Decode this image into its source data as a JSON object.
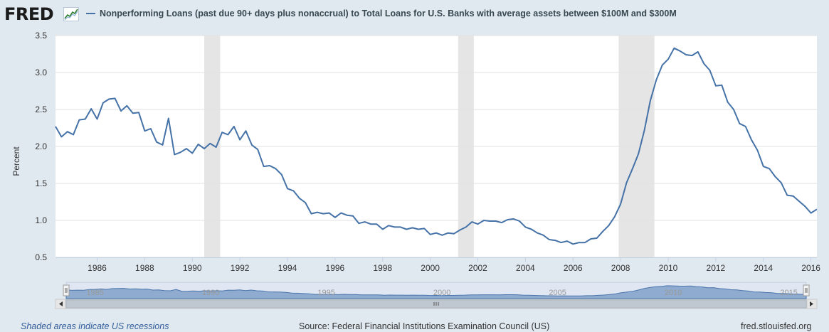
{
  "header": {
    "logo": "FRED",
    "logo_graph_icon": "line-graph-icon",
    "title": "Nonperforming Loans (past due 90+ days plus nonaccrual) to Total Loans for U.S. Banks with average assets between $100M and $300M"
  },
  "chart_data": {
    "type": "line",
    "title": "Nonperforming Loans (past due 90+ days plus nonaccrual) to Total Loans for U.S. Banks with average assets between $100M and $300M",
    "xlabel": "",
    "ylabel": "Percent",
    "ylim": [
      0.5,
      3.5
    ],
    "xlim": [
      1984.25,
      2016.25
    ],
    "yticks": [
      "0.5",
      "1.0",
      "1.5",
      "2.0",
      "2.5",
      "3.0",
      "3.5"
    ],
    "xticks": [
      "1986",
      "1988",
      "1990",
      "1992",
      "1994",
      "1996",
      "1998",
      "2000",
      "2002",
      "2004",
      "2006",
      "2008",
      "2010",
      "2012",
      "2014",
      "2016"
    ],
    "grid": true,
    "line_color": "#4572a7",
    "recessions": [
      [
        1990.5,
        1991.17
      ],
      [
        2001.17,
        2001.83
      ],
      [
        2007.92,
        2009.42
      ]
    ],
    "series": [
      {
        "name": "Nonperforming Loans (past due 90+ days plus nonaccrual) to Total Loans for U.S. Banks with average assets between $100M and $300M",
        "values": [
          [
            1984.25,
            2.27
          ],
          [
            1984.5,
            2.13
          ],
          [
            1984.75,
            2.2
          ],
          [
            1985.0,
            2.16
          ],
          [
            1985.25,
            2.36
          ],
          [
            1985.5,
            2.37
          ],
          [
            1985.75,
            2.51
          ],
          [
            1986.0,
            2.37
          ],
          [
            1986.25,
            2.59
          ],
          [
            1986.5,
            2.64
          ],
          [
            1986.75,
            2.65
          ],
          [
            1987.0,
            2.48
          ],
          [
            1987.25,
            2.55
          ],
          [
            1987.5,
            2.45
          ],
          [
            1987.75,
            2.46
          ],
          [
            1988.0,
            2.21
          ],
          [
            1988.25,
            2.24
          ],
          [
            1988.5,
            2.06
          ],
          [
            1988.75,
            2.02
          ],
          [
            1989.0,
            2.38
          ],
          [
            1989.25,
            1.89
          ],
          [
            1989.5,
            1.92
          ],
          [
            1989.75,
            1.97
          ],
          [
            1990.0,
            1.91
          ],
          [
            1990.25,
            2.03
          ],
          [
            1990.5,
            1.97
          ],
          [
            1990.75,
            2.04
          ],
          [
            1991.0,
            1.99
          ],
          [
            1991.25,
            2.19
          ],
          [
            1991.5,
            2.16
          ],
          [
            1991.75,
            2.27
          ],
          [
            1992.0,
            2.09
          ],
          [
            1992.25,
            2.21
          ],
          [
            1992.5,
            2.02
          ],
          [
            1992.75,
            1.96
          ],
          [
            1993.0,
            1.73
          ],
          [
            1993.25,
            1.74
          ],
          [
            1993.5,
            1.7
          ],
          [
            1993.75,
            1.62
          ],
          [
            1994.0,
            1.43
          ],
          [
            1994.25,
            1.4
          ],
          [
            1994.5,
            1.3
          ],
          [
            1994.75,
            1.24
          ],
          [
            1995.0,
            1.09
          ],
          [
            1995.25,
            1.11
          ],
          [
            1995.5,
            1.09
          ],
          [
            1995.75,
            1.1
          ],
          [
            1996.0,
            1.04
          ],
          [
            1996.25,
            1.1
          ],
          [
            1996.5,
            1.07
          ],
          [
            1996.75,
            1.06
          ],
          [
            1997.0,
            0.96
          ],
          [
            1997.25,
            0.98
          ],
          [
            1997.5,
            0.95
          ],
          [
            1997.75,
            0.95
          ],
          [
            1998.0,
            0.88
          ],
          [
            1998.25,
            0.93
          ],
          [
            1998.5,
            0.91
          ],
          [
            1998.75,
            0.91
          ],
          [
            1999.0,
            0.88
          ],
          [
            1999.25,
            0.9
          ],
          [
            1999.5,
            0.88
          ],
          [
            1999.75,
            0.89
          ],
          [
            2000.0,
            0.81
          ],
          [
            2000.25,
            0.83
          ],
          [
            2000.5,
            0.8
          ],
          [
            2000.75,
            0.83
          ],
          [
            2001.0,
            0.82
          ],
          [
            2001.25,
            0.87
          ],
          [
            2001.5,
            0.91
          ],
          [
            2001.75,
            0.98
          ],
          [
            2002.0,
            0.95
          ],
          [
            2002.25,
            1.0
          ],
          [
            2002.5,
            0.99
          ],
          [
            2002.75,
            0.99
          ],
          [
            2003.0,
            0.97
          ],
          [
            2003.25,
            1.01
          ],
          [
            2003.5,
            1.02
          ],
          [
            2003.75,
            0.99
          ],
          [
            2004.0,
            0.91
          ],
          [
            2004.25,
            0.88
          ],
          [
            2004.5,
            0.83
          ],
          [
            2004.75,
            0.8
          ],
          [
            2005.0,
            0.74
          ],
          [
            2005.25,
            0.73
          ],
          [
            2005.5,
            0.7
          ],
          [
            2005.75,
            0.72
          ],
          [
            2006.0,
            0.68
          ],
          [
            2006.25,
            0.7
          ],
          [
            2006.5,
            0.7
          ],
          [
            2006.75,
            0.75
          ],
          [
            2007.0,
            0.76
          ],
          [
            2007.25,
            0.85
          ],
          [
            2007.5,
            0.93
          ],
          [
            2007.75,
            1.05
          ],
          [
            2008.0,
            1.22
          ],
          [
            2008.25,
            1.51
          ],
          [
            2008.5,
            1.7
          ],
          [
            2008.75,
            1.9
          ],
          [
            2009.0,
            2.22
          ],
          [
            2009.25,
            2.62
          ],
          [
            2009.5,
            2.9
          ],
          [
            2009.75,
            3.1
          ],
          [
            2010.0,
            3.18
          ],
          [
            2010.25,
            3.33
          ],
          [
            2010.5,
            3.29
          ],
          [
            2010.75,
            3.24
          ],
          [
            2011.0,
            3.23
          ],
          [
            2011.25,
            3.28
          ],
          [
            2011.5,
            3.12
          ],
          [
            2011.75,
            3.03
          ],
          [
            2012.0,
            2.82
          ],
          [
            2012.25,
            2.83
          ],
          [
            2012.5,
            2.6
          ],
          [
            2012.75,
            2.5
          ],
          [
            2013.0,
            2.31
          ],
          [
            2013.25,
            2.27
          ],
          [
            2013.5,
            2.09
          ],
          [
            2013.75,
            1.95
          ],
          [
            2014.0,
            1.73
          ],
          [
            2014.25,
            1.7
          ],
          [
            2014.5,
            1.59
          ],
          [
            2014.75,
            1.51
          ],
          [
            2015.0,
            1.34
          ],
          [
            2015.25,
            1.33
          ],
          [
            2015.5,
            1.26
          ],
          [
            2015.75,
            1.19
          ],
          [
            2016.0,
            1.1
          ],
          [
            2016.25,
            1.15
          ]
        ]
      }
    ]
  },
  "navigator": {
    "labels": [
      "1985",
      "1990",
      "1995",
      "2000",
      "2005",
      "2010",
      "2015"
    ],
    "handle_icon": "drag-handle-icon",
    "left_arrow_icon": "scroll-left-arrow-icon",
    "right_arrow_icon": "scroll-right-arrow-icon",
    "grip_icon": "scrollbar-grip-icon"
  },
  "footer": {
    "recession_note": "Shaded areas indicate US recessions",
    "source": "Source: Federal Financial Institutions Examination Council (US)",
    "site": "fred.stlouisfed.org"
  }
}
